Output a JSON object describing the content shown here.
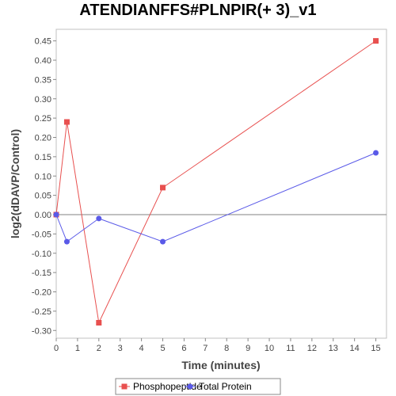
{
  "chart_data": {
    "type": "line",
    "title": "ATENDIANFFS#PLNPIR(+ 3)_v1",
    "xlabel": "Time (minutes)",
    "ylabel": "log2(dDAVP/Control)",
    "xlim": [
      0,
      15.5
    ],
    "ylim": [
      -0.32,
      0.48
    ],
    "xticks": [
      0,
      1,
      2,
      3,
      4,
      5,
      6,
      7,
      8,
      9,
      10,
      11,
      12,
      13,
      14,
      15
    ],
    "yticks": [
      0.45,
      0.4,
      0.35,
      0.3,
      0.25,
      0.2,
      0.15,
      0.1,
      0.05,
      0.0,
      -0.05,
      -0.1,
      -0.15,
      -0.2,
      -0.25,
      -0.3
    ],
    "grid": false,
    "legend_position": "bottom",
    "series": [
      {
        "name": "Phosphopeptide",
        "color": "#e8504f",
        "marker": "square",
        "x": [
          0,
          0.5,
          2,
          5,
          15
        ],
        "y": [
          0.0,
          0.24,
          -0.28,
          0.07,
          0.45
        ]
      },
      {
        "name": "Total Protein",
        "color": "#5a5ae8",
        "marker": "circle",
        "x": [
          0,
          0.5,
          2,
          5,
          15
        ],
        "y": [
          0.0,
          -0.07,
          -0.01,
          -0.07,
          0.16
        ]
      }
    ]
  }
}
